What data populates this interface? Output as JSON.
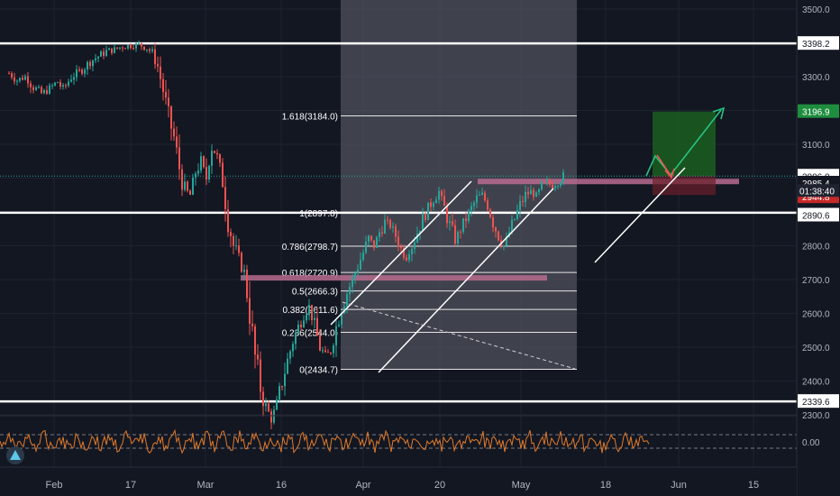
{
  "chart_data": {
    "type": "candlestick",
    "x_ticks": [
      "Feb",
      "17",
      "Mar",
      "16",
      "Apr",
      "20",
      "May",
      "18",
      "Jun",
      "15"
    ],
    "y_ticks": [
      "3500.0",
      "3400.0",
      "3300.0",
      "3200.0",
      "3100.0",
      "3000.0",
      "2900.0",
      "2800.0",
      "2700.0",
      "2600.0",
      "2500.0",
      "2400.0",
      "2300.0"
    ],
    "ylim": [
      2300,
      3500
    ],
    "price_path": [
      [
        0,
        3310
      ],
      [
        3,
        3290
      ],
      [
        6,
        3300
      ],
      [
        9,
        3270
      ],
      [
        12,
        3250
      ],
      [
        15,
        3265
      ],
      [
        18,
        3285
      ],
      [
        20,
        3260
      ],
      [
        23,
        3300
      ],
      [
        27,
        3320
      ],
      [
        30,
        3345
      ],
      [
        33,
        3360
      ],
      [
        36,
        3375
      ],
      [
        39,
        3380
      ],
      [
        42,
        3390
      ],
      [
        45,
        3392
      ],
      [
        48,
        3395
      ],
      [
        51,
        3385
      ],
      [
        53,
        3370
      ],
      [
        55,
        3330
      ],
      [
        57,
        3260
      ],
      [
        59,
        3180
      ],
      [
        61,
        3120
      ],
      [
        63,
        3030
      ],
      [
        65,
        2960
      ],
      [
        67,
        2950
      ],
      [
        69,
        3020
      ],
      [
        71,
        3050
      ],
      [
        73,
        3000
      ],
      [
        75,
        3100
      ],
      [
        77,
        3060
      ],
      [
        79,
        2990
      ],
      [
        81,
        2880
      ],
      [
        83,
        2800
      ],
      [
        85,
        2760
      ],
      [
        87,
        2720
      ],
      [
        89,
        2600
      ],
      [
        91,
        2470
      ],
      [
        93,
        2380
      ],
      [
        95,
        2320
      ],
      [
        97,
        2290
      ],
      [
        99,
        2330
      ],
      [
        101,
        2400
      ],
      [
        103,
        2460
      ],
      [
        105,
        2520
      ],
      [
        107,
        2560
      ],
      [
        109,
        2600
      ],
      [
        111,
        2620
      ],
      [
        113,
        2560
      ],
      [
        115,
        2500
      ],
      [
        117,
        2470
      ],
      [
        119,
        2490
      ],
      [
        121,
        2560
      ],
      [
        123,
        2620
      ],
      [
        125,
        2660
      ],
      [
        127,
        2700
      ],
      [
        129,
        2740
      ],
      [
        131,
        2780
      ],
      [
        133,
        2820
      ],
      [
        135,
        2800
      ],
      [
        137,
        2840
      ],
      [
        139,
        2870
      ],
      [
        141,
        2860
      ],
      [
        143,
        2830
      ],
      [
        145,
        2790
      ],
      [
        147,
        2770
      ],
      [
        149,
        2800
      ],
      [
        151,
        2840
      ],
      [
        153,
        2880
      ],
      [
        155,
        2910
      ],
      [
        157,
        2940
      ],
      [
        159,
        2960
      ],
      [
        161,
        2910
      ],
      [
        163,
        2860
      ],
      [
        165,
        2820
      ],
      [
        167,
        2850
      ],
      [
        169,
        2880
      ],
      [
        171,
        2910
      ],
      [
        173,
        2940
      ],
      [
        175,
        2950
      ],
      [
        177,
        2920
      ],
      [
        179,
        2870
      ],
      [
        181,
        2830
      ],
      [
        183,
        2800
      ],
      [
        185,
        2840
      ],
      [
        187,
        2880
      ],
      [
        189,
        2920
      ],
      [
        191,
        2950
      ],
      [
        193,
        2960
      ],
      [
        195,
        2945
      ],
      [
        197,
        2975
      ],
      [
        199,
        2985
      ],
      [
        201,
        2978
      ],
      [
        203,
        2990
      ],
      [
        205,
        3006
      ]
    ],
    "price_scale_labels": [
      {
        "value": 3398.2,
        "text": "3398.2",
        "style": "white"
      },
      {
        "value": 3196.9,
        "text": "3196.9",
        "style": "green"
      },
      {
        "value": 3006.0,
        "text": "3006.0",
        "style": "teal"
      },
      {
        "value": 2985.4,
        "text": "2985.4",
        "style": "dark"
      },
      {
        "value": 2944.8,
        "text": "2944.8",
        "style": "red"
      },
      {
        "value": 2890.6,
        "text": "2890.6",
        "style": "white"
      },
      {
        "value": 2339.6,
        "text": "2339.6",
        "style": "white"
      }
    ],
    "countdown_label": "01:38:40",
    "horizontal_levels": [
      3398.2,
      2897.8,
      2339.6
    ],
    "current_price": 3006.0,
    "fibonacci": {
      "levels": [
        {
          "value": 3184.0,
          "label": "1.618(3184.0)"
        },
        {
          "value": 2897.8,
          "label": "1(2897.8)"
        },
        {
          "value": 2798.7,
          "label": "0.786(2798.7)"
        },
        {
          "value": 2720.9,
          "label": "0.618(2720.9)"
        },
        {
          "value": 2666.3,
          "label": "0.5(2666.3)"
        },
        {
          "value": 2611.6,
          "label": "0.382(2611.6)"
        },
        {
          "value": 2544.0,
          "label": "0.236(2544.0)"
        },
        {
          "value": 2434.7,
          "label": "0(2434.7)"
        }
      ]
    },
    "oscillator": {
      "tick": "0.00",
      "value": 0.0
    }
  }
}
